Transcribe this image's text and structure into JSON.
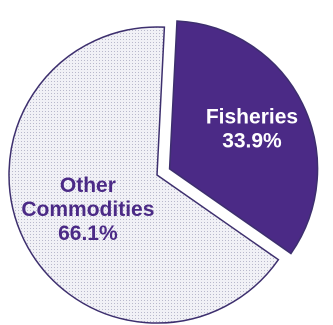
{
  "chart_data": {
    "type": "pie",
    "slices": [
      {
        "label": "Fisheries",
        "value": 33.9,
        "value_label": "33.9%",
        "exploded": true,
        "color": "#4b2a86",
        "label_color": "#ffffff"
      },
      {
        "label": "Other\nCommodities",
        "value": 66.1,
        "value_label": "66.1%",
        "exploded": false,
        "color": "#e6e6f0",
        "label_color": "#4b2a86"
      }
    ],
    "outline_color": "#3d2f6e"
  }
}
